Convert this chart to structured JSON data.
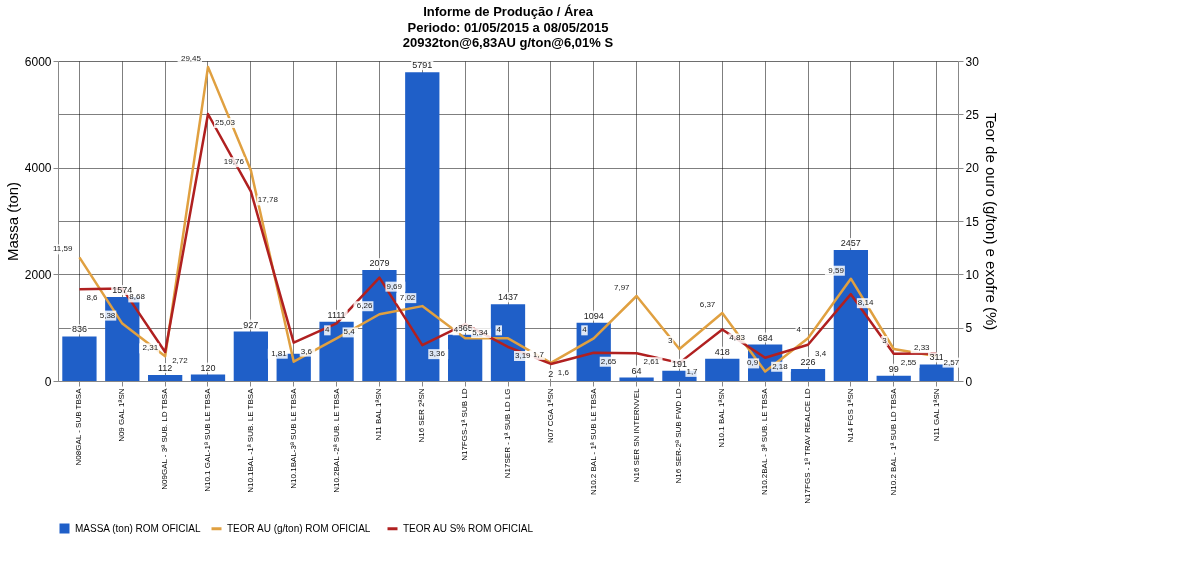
{
  "chart_data": {
    "type": "bar",
    "title": "Informe de Produção / Área",
    "subtitle": "Periodo: 01/05/2015 a 08/05/2015\n20932ton@6,83AU g/ton@6,01% S",
    "ylabel": "Massa (ton)",
    "y2label": "Teor de ouro (g/ton) e exofre (%)",
    "categories": [
      "N08GAL - SUB TBSA",
      "N09 GAL 1ªSN",
      "N09GAL - 3ª SUB. LD TBSA",
      "N10.1 GAL-1ª SUB LE TBSA",
      "N10.1BAL -1ª SUB. LE TBSA",
      "N10.1BAL-3ª SUB LE TBSA",
      "N10.2BAL -2ª SUB. LE TBSA",
      "N11 BAL 1ªSN",
      "N16 SER 2ªSN",
      "N17FGS-1ª SUB LD",
      "N17SER - 1ª SUB LD LG",
      "N07 CGA 1ªSN",
      "N10.2 BAL - 1ª SUB LE TBSA",
      "N16 SER SN INTERNVEL",
      "N16 SER-2ª SUB FWD LD",
      "N10.1 BAL 1ªSN",
      "N10.2BAL - 3ª SUB. LE TBSA",
      "N17FGS - 1ª TRAV REALCE LD",
      "N14 FGS 1ªSN",
      "N10.2 BAL - 1ª SUB LD TBSA",
      "N11 GAL 1ªSN"
    ],
    "series": [
      {
        "name": "MASSA (ton) ROM OFICIAL",
        "color": "#1f5fc8",
        "values": [
          836,
          1574,
          112,
          120,
          927,
          510,
          1111,
          2079,
          5791,
          865,
          1437,
          2,
          1094,
          64,
          191,
          418,
          684,
          226,
          2457,
          99,
          311
        ],
        "value_labels": [
          "836",
          "1574",
          "112",
          "120",
          "927",
          null,
          "1111",
          "2079",
          "5791",
          "865",
          "1437",
          "2",
          "1094",
          "64",
          "191",
          "418",
          "684",
          "226",
          "2457",
          "99",
          "311"
        ]
      },
      {
        "name": "TEOR AU (g/ton) ROM OFICIAL",
        "type": "line",
        "axis": "y2",
        "color": "#e0a040",
        "values": [
          11.59,
          5.38,
          2.31,
          29.45,
          19.76,
          1.81,
          4,
          6.26,
          7.02,
          4,
          4,
          1.7,
          4,
          7.97,
          3,
          6.37,
          0.9,
          4,
          9.59,
          3,
          2.33
        ],
        "value_labels": [
          "11,59",
          "5,38",
          "2,31",
          "29,45",
          "19,76",
          "1,81",
          "4",
          "6,26",
          "7,02",
          "4",
          "4",
          "1,7",
          "4",
          "7,97",
          "3",
          "6,37",
          "0,9",
          "4",
          "9,59",
          "3",
          "2,33"
        ]
      },
      {
        "name": "TEOR AU S% ROM OFICIAL",
        "type": "line",
        "axis": "y2",
        "color": "#b02020",
        "values": [
          8.6,
          8.68,
          2.72,
          25.03,
          17.78,
          3.6,
          5.4,
          9.69,
          3.36,
          5.34,
          3.19,
          1.6,
          2.65,
          2.61,
          1.7,
          4.83,
          2.18,
          3.4,
          8.14,
          2.55,
          2.57
        ],
        "value_labels": [
          "8,6",
          "8,68",
          "2,72",
          "25,03",
          "17,78",
          "3,6",
          "5,4",
          "9,69",
          "3,36",
          "5,34",
          "3,19",
          "1,6",
          "2,65",
          "2,61",
          "1,7",
          "4,83",
          "2,18",
          "3,4",
          "8,14",
          "2,55",
          "2,57"
        ]
      }
    ],
    "ylim": [
      0,
      6000
    ],
    "yticks": [
      0,
      2000,
      4000,
      6000
    ],
    "y2lim": [
      0,
      30
    ],
    "y2ticks": [
      0,
      5,
      10,
      15,
      20,
      25,
      30
    ],
    "grid": true,
    "legend": "bottom left"
  }
}
